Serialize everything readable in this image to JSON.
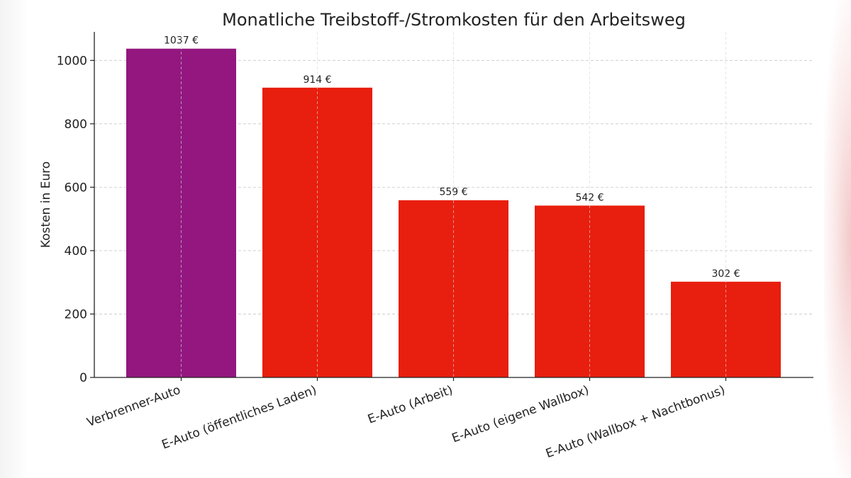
{
  "chart_data": {
    "type": "bar",
    "title": "Monatliche Treibstoff-/Stromkosten für den Arbeitsweg",
    "xlabel": "",
    "ylabel": "Kosten in Euro",
    "categories": [
      "Verbrenner-Auto",
      "E-Auto (öffentliches Laden)",
      "E-Auto (Arbeit)",
      "E-Auto (eigene Wallbox)",
      "E-Auto (Wallbox + Nachtbonus)"
    ],
    "values": [
      1037,
      914,
      559,
      542,
      302
    ],
    "data_labels": [
      "1037 €",
      "914 €",
      "559 €",
      "542 €",
      "302 €"
    ],
    "colors": [
      "#93177f",
      "#e81e0e",
      "#e81e0e",
      "#e81e0e",
      "#e81e0e"
    ],
    "ylim": [
      0,
      1090
    ],
    "yticks": [
      0,
      200,
      400,
      600,
      800,
      1000
    ],
    "grid": true
  }
}
